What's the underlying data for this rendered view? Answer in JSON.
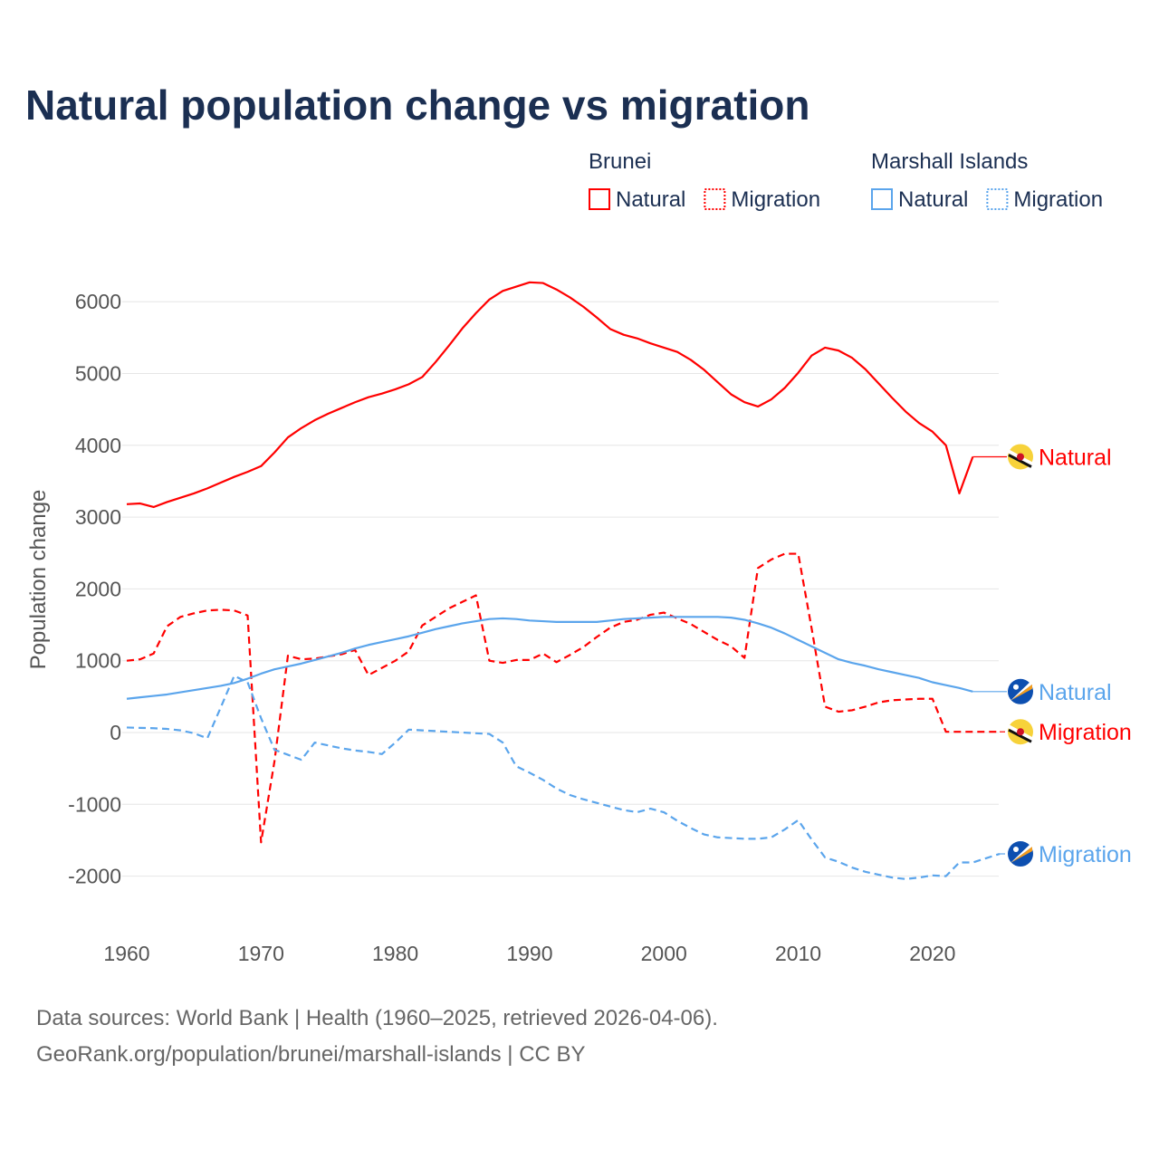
{
  "colors": {
    "title": "#1b2f52",
    "brunei": "#ff0000",
    "marshall": "#5ba5ec",
    "grid": "#e6e6e6",
    "axis_text": "#555555"
  },
  "chart_data": {
    "type": "line",
    "title": "Natural population change vs migration",
    "ylabel": "Population change",
    "xlabel": "",
    "xlim": [
      1960,
      2025
    ],
    "ylim": [
      -2600,
      6500
    ],
    "grid": true,
    "x_ticks": [
      1960,
      1970,
      1980,
      1990,
      2000,
      2010,
      2020
    ],
    "y_ticks": [
      -2000,
      -1000,
      0,
      1000,
      2000,
      3000,
      4000,
      5000,
      6000
    ],
    "legend": {
      "placement": "top-right",
      "groups": [
        {
          "name": "Brunei",
          "items": [
            "Natural",
            "Migration"
          ]
        },
        {
          "name": "Marshall Islands",
          "items": [
            "Natural",
            "Migration"
          ]
        }
      ]
    },
    "series": [
      {
        "name": "Natural",
        "country": "Brunei",
        "style": "solid",
        "color": "#ff0000",
        "start": 1960,
        "values": [
          3180,
          3190,
          3140,
          3210,
          3270,
          3330,
          3400,
          3480,
          3560,
          3630,
          3710,
          3900,
          4110,
          4240,
          4350,
          4440,
          4520,
          4600,
          4670,
          4720,
          4780,
          4850,
          4950,
          5160,
          5390,
          5630,
          5840,
          6030,
          6150,
          6210,
          6270,
          6260,
          6170,
          6060,
          5930,
          5780,
          5620,
          5540,
          5490,
          5420,
          5360,
          5300,
          5190,
          5050,
          4880,
          4710,
          4600,
          4540,
          4640,
          4800,
          5010,
          5250,
          5360,
          5320,
          5220,
          5060,
          4860,
          4660,
          4470,
          4310,
          4190,
          4000,
          3330,
          3840
        ]
      },
      {
        "name": "Migration",
        "country": "Brunei",
        "style": "dashed",
        "color": "#ff0000",
        "start": 1960,
        "values": [
          1000,
          1020,
          1100,
          1480,
          1610,
          1660,
          1700,
          1710,
          1700,
          1630,
          -1530,
          -400,
          1070,
          1020,
          1030,
          1060,
          1090,
          1150,
          800,
          900,
          1000,
          1130,
          1490,
          1610,
          1730,
          1820,
          1910,
          1000,
          970,
          1010,
          1010,
          1100,
          980,
          1080,
          1190,
          1330,
          1460,
          1540,
          1570,
          1640,
          1670,
          1590,
          1510,
          1400,
          1290,
          1200,
          1040,
          2290,
          2410,
          2490,
          2490,
          1450,
          360,
          290,
          310,
          360,
          420,
          450,
          460,
          470,
          470,
          10,
          10,
          10,
          10,
          10
        ]
      },
      {
        "name": "Natural",
        "country": "Marshall Islands",
        "style": "solid",
        "color": "#5ba5ec",
        "start": 1960,
        "values": [
          470,
          490,
          510,
          530,
          560,
          590,
          620,
          650,
          690,
          750,
          820,
          880,
          920,
          960,
          1010,
          1060,
          1110,
          1170,
          1220,
          1260,
          1300,
          1340,
          1390,
          1440,
          1480,
          1520,
          1550,
          1580,
          1590,
          1580,
          1560,
          1550,
          1540,
          1540,
          1540,
          1540,
          1560,
          1580,
          1590,
          1600,
          1610,
          1610,
          1610,
          1610,
          1610,
          1600,
          1570,
          1520,
          1460,
          1380,
          1290,
          1200,
          1110,
          1020,
          970,
          930,
          880,
          840,
          800,
          760,
          700,
          660,
          620,
          570
        ]
      },
      {
        "name": "Migration",
        "country": "Marshall Islands",
        "style": "dashed",
        "color": "#5ba5ec",
        "start": 1960,
        "values": [
          70,
          65,
          60,
          50,
          30,
          -10,
          -80,
          350,
          790,
          700,
          200,
          -240,
          -310,
          -380,
          -140,
          -180,
          -220,
          -250,
          -270,
          -300,
          -140,
          40,
          30,
          20,
          10,
          0,
          -10,
          -20,
          -140,
          -470,
          -560,
          -660,
          -780,
          -870,
          -930,
          -980,
          -1030,
          -1080,
          -1110,
          -1060,
          -1110,
          -1230,
          -1330,
          -1420,
          -1460,
          -1470,
          -1480,
          -1480,
          -1460,
          -1350,
          -1220,
          -1490,
          -1740,
          -1800,
          -1880,
          -1940,
          -1980,
          -2020,
          -2040,
          -2020,
          -1990,
          -2000,
          -1810,
          -1810,
          -1750,
          -1690
        ]
      }
    ],
    "end_labels": [
      "Natural",
      "Migration",
      "Natural",
      "Migration"
    ]
  },
  "footer": {
    "line1": "Data sources: World Bank | Health (1960–2025, retrieved 2026-04-06).",
    "line2": "GeoRank.org/population/brunei/marshall-islands | CC BY"
  }
}
